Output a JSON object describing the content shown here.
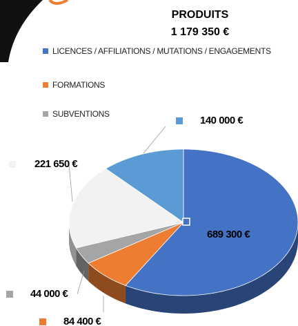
{
  "chart_data": {
    "type": "pie",
    "title": "PRODUITS",
    "subtitle": "1 179 350 €",
    "categories": [
      "LICENCES / AFFILIATIONS / MUTATIONS / ENGAGEMENTS",
      "FORMATIONS",
      "SUBVENTIONS",
      null,
      null
    ],
    "values": [
      689300,
      84400,
      44000,
      221650,
      140000
    ],
    "value_labels": [
      "689 300 €",
      "84 400 €",
      "44 000 €",
      "221 650 €",
      "140 000 €"
    ],
    "colors": [
      "#4472c4",
      "#ed7d31",
      "#a5a5a5",
      "#f2f2f2",
      "#5b9bd5"
    ],
    "legend": "top-left"
  }
}
